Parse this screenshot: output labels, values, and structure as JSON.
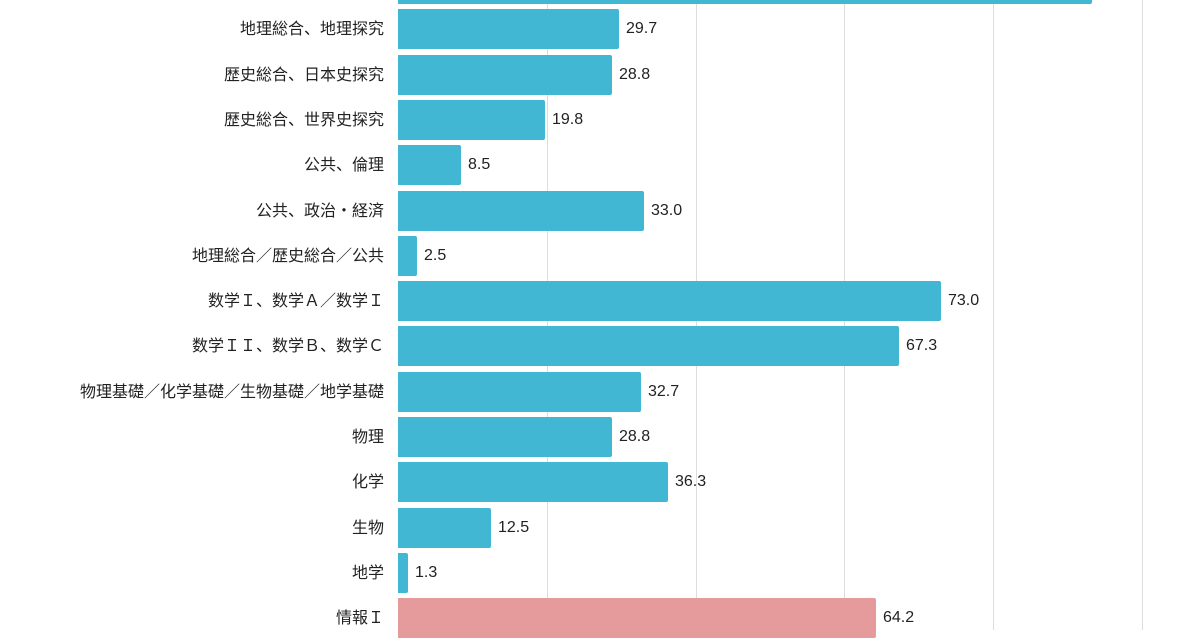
{
  "chart_data": {
    "type": "bar",
    "orientation": "horizontal",
    "title": "",
    "xlabel": "",
    "ylabel": "",
    "xlim": [
      0,
      100
    ],
    "grid": true,
    "grid_ticks": [
      0,
      20,
      40,
      60,
      80,
      100
    ],
    "colors": {
      "default": "#42b7d4",
      "highlight": "#e59a9b"
    },
    "categories": [
      "(top, cropped)",
      "地理総合、地理探究",
      "歴史総合、日本史探究",
      "歴史総合、世界史探究",
      "公共、倫理",
      "公共、政治・経済",
      "地理総合／歴史総合／公共",
      "数学Ｉ、数学Ａ／数学Ｉ",
      "数学ＩＩ、数学Ｂ、数学Ｃ",
      "物理基礎／化学基礎／生物基礎／地学基礎",
      "物理",
      "化学",
      "生物",
      "地学",
      "情報Ｉ"
    ],
    "values": [
      93.3,
      29.7,
      28.8,
      19.8,
      8.5,
      33.0,
      2.5,
      73.0,
      67.3,
      32.7,
      28.8,
      36.3,
      12.5,
      1.3,
      64.2
    ],
    "value_labels": [
      "",
      "29.7",
      "28.8",
      "19.8",
      "8.5",
      "33.0",
      "2.5",
      "73.0",
      "67.3",
      "32.7",
      "28.8",
      "36.3",
      "12.5",
      "1.3",
      "64.2"
    ],
    "highlighted": [
      false,
      false,
      false,
      false,
      false,
      false,
      false,
      false,
      false,
      false,
      false,
      false,
      false,
      false,
      true
    ]
  }
}
